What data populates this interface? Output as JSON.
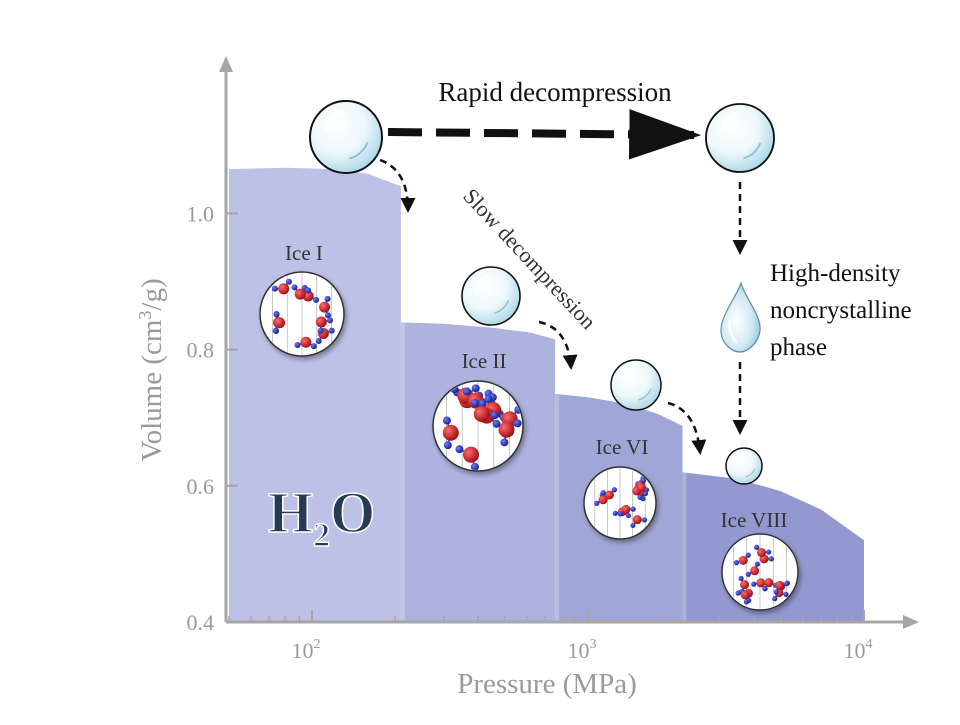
{
  "chart_data": {
    "type": "area",
    "title": "",
    "xlabel": "Pressure (MPa)",
    "ylabel_main": "Volume (cm",
    "ylabel_sup": "3",
    "ylabel_tail": "/g)",
    "x_scale": "log",
    "xlim": [
      50,
      12000
    ],
    "ylim": [
      0.4,
      1.2
    ],
    "x_ticks": [
      {
        "value": 100,
        "base": "10",
        "exp": "2"
      },
      {
        "value": 1000,
        "base": "10",
        "exp": "3"
      },
      {
        "value": 10000,
        "base": "10",
        "exp": "4"
      }
    ],
    "y_ticks": [
      {
        "value": 0.4,
        "label": "0.4"
      },
      {
        "value": 0.6,
        "label": "0.6"
      },
      {
        "value": 0.8,
        "label": "0.8"
      },
      {
        "value": 1.0,
        "label": "1.0"
      }
    ],
    "regions": [
      {
        "name": "Ice I",
        "x": [
          50,
          80,
          120,
          160,
          210
        ],
        "y": [
          1.065,
          1.067,
          1.065,
          1.058,
          1.04
        ],
        "color": "#b9bde6"
      },
      {
        "name": "Ice II",
        "x": [
          210,
          300,
          450,
          620,
          760
        ],
        "y": [
          0.84,
          0.838,
          0.832,
          0.825,
          0.815
        ],
        "color": "#a9aedd"
      },
      {
        "name": "Ice VI",
        "x": [
          760,
          1000,
          1400,
          1800,
          2200
        ],
        "y": [
          0.735,
          0.73,
          0.72,
          0.705,
          0.688
        ],
        "color": "#9ca1d6"
      },
      {
        "name": "Ice VIII",
        "x": [
          2200,
          3500,
          5000,
          7000,
          10000
        ],
        "y": [
          0.62,
          0.61,
          0.592,
          0.565,
          0.52
        ],
        "color": "#8d92ce"
      }
    ],
    "colors": {
      "axis": "#a6a6a6",
      "label": "#9a9a9a",
      "oxygen": "#c8141e",
      "hydrogen": "#1e2ab4"
    }
  },
  "labels": {
    "h2o_h": "H",
    "h2o_sub": "2",
    "h2o_o": "O",
    "rapid": "Rapid decompression",
    "slow": "Slow decompression",
    "hd_line1": "High-density",
    "hd_line2": "noncrystalline",
    "hd_line3": "phase"
  },
  "icons": {
    "droplet": "water-droplet-icon",
    "ball": "ice-ball-icon",
    "molecule": "molecular-structure-icon"
  }
}
